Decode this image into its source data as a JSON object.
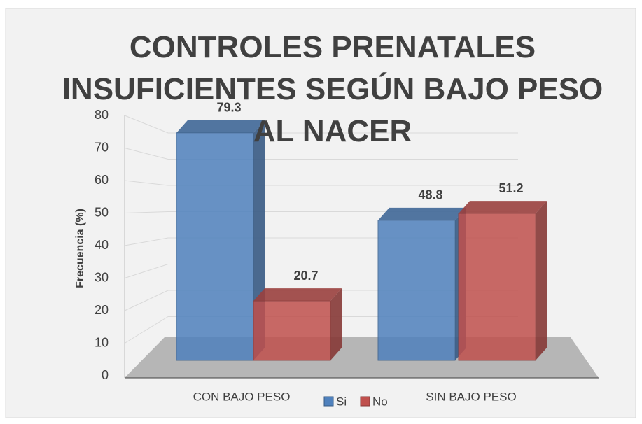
{
  "chart_data": {
    "type": "bar3d",
    "title": "CONTROLES PRENATALES INSUFICIENTES SEGÚN BAJO PESO AL NACER",
    "y_label": "Frecuencia (%)",
    "categories": [
      "CON BAJO PESO",
      "SIN BAJO PESO"
    ],
    "series": [
      {
        "name": "Si",
        "color": "#4f81bd",
        "values": [
          79.3,
          48.8
        ]
      },
      {
        "name": "No",
        "color": "#c0504d",
        "values": [
          20.7,
          51.2
        ]
      }
    ],
    "ylim": [
      0,
      80
    ],
    "yticks": [
      0,
      10,
      20,
      30,
      40,
      50,
      60,
      70,
      80
    ],
    "grid": true,
    "legend": "bottom"
  }
}
